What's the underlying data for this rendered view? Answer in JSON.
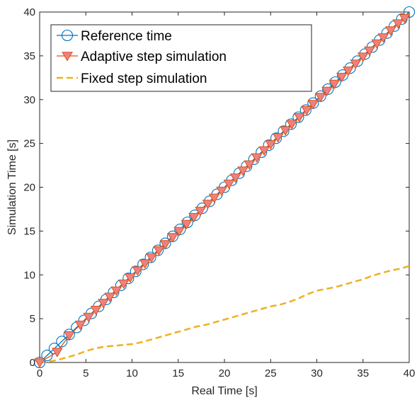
{
  "chart_data": {
    "type": "line",
    "xlabel": "Real Time [s]",
    "ylabel": "Simulation Time [s]",
    "xlim": [
      0,
      40
    ],
    "ylim": [
      0,
      40
    ],
    "xticks": [
      0,
      5,
      10,
      15,
      20,
      25,
      30,
      35,
      40
    ],
    "yticks": [
      0,
      5,
      10,
      15,
      20,
      25,
      30,
      35,
      40
    ],
    "grid": false,
    "legend_position": "top-left",
    "series": [
      {
        "name": "Reference time",
        "style": "line-with-circle-markers",
        "color": "#0072BD",
        "x": [
          0,
          0.8,
          1.6,
          2.4,
          3.2,
          4.0,
          4.8,
          5.6,
          6.4,
          7.2,
          8.0,
          8.8,
          9.6,
          10.4,
          11.2,
          12.0,
          12.8,
          13.6,
          14.4,
          15.2,
          16.0,
          16.8,
          17.6,
          18.4,
          19.2,
          20.0,
          20.8,
          21.6,
          22.4,
          23.2,
          24.0,
          24.8,
          25.6,
          26.4,
          27.2,
          28.0,
          28.8,
          29.6,
          30.4,
          31.2,
          32.0,
          32.8,
          33.6,
          34.4,
          35.2,
          36.0,
          36.8,
          37.6,
          38.4,
          39.2,
          40.0
        ],
        "y": [
          0,
          0.8,
          1.6,
          2.4,
          3.2,
          4.0,
          4.8,
          5.6,
          6.4,
          7.2,
          8.0,
          8.8,
          9.6,
          10.4,
          11.2,
          12.0,
          12.8,
          13.6,
          14.4,
          15.2,
          16.0,
          16.8,
          17.6,
          18.4,
          19.2,
          20.0,
          20.8,
          21.6,
          22.4,
          23.2,
          24.0,
          24.8,
          25.6,
          26.4,
          27.2,
          28.0,
          28.8,
          29.6,
          30.4,
          31.2,
          32.0,
          32.8,
          33.6,
          34.4,
          35.2,
          36.0,
          36.8,
          37.6,
          38.4,
          39.2,
          40.0
        ]
      },
      {
        "name": "Adaptive step simulation",
        "style": "line-with-down-triangle-markers",
        "color": "#D95319",
        "marker_fill": "#F08080",
        "x": [
          0,
          1.9,
          3.2,
          4.4,
          5.3,
          6.1,
          6.9,
          7.6,
          8.3,
          9.1,
          9.8,
          10.6,
          11.4,
          12.1,
          12.9,
          13.6,
          14.4,
          15.1,
          15.9,
          16.7,
          17.4,
          18.2,
          18.9,
          19.7,
          20.5,
          21.2,
          22.0,
          22.7,
          23.5,
          24.3,
          25.0,
          25.8,
          26.6,
          27.3,
          28.1,
          28.9,
          29.6,
          30.4,
          31.1,
          31.9,
          32.7,
          33.4,
          34.2,
          35.0,
          35.7,
          36.5,
          37.2,
          38.0,
          38.8,
          39.5
        ],
        "y": [
          0,
          1.2,
          3.1,
          4.3,
          5.2,
          6.0,
          6.8,
          7.5,
          8.2,
          9.0,
          9.7,
          10.5,
          11.3,
          12.0,
          12.8,
          13.5,
          14.3,
          15.0,
          15.8,
          16.6,
          17.3,
          18.1,
          18.8,
          19.6,
          20.4,
          21.1,
          21.9,
          22.6,
          23.4,
          24.2,
          24.9,
          25.7,
          26.5,
          27.2,
          28.0,
          28.8,
          29.5,
          30.3,
          31.0,
          31.8,
          32.6,
          33.3,
          34.1,
          34.9,
          35.6,
          36.4,
          37.1,
          37.9,
          38.7,
          39.3
        ]
      },
      {
        "name": "Fixed step simulation",
        "style": "dashed-line",
        "color": "#EDB120",
        "x": [
          0,
          1,
          2,
          3,
          4,
          5,
          6,
          7,
          8,
          9,
          10,
          11,
          12,
          13,
          14,
          15,
          16,
          17,
          18,
          19,
          20,
          21,
          22,
          23,
          24,
          25,
          26,
          27,
          28,
          29,
          30,
          31,
          32,
          33,
          34,
          35,
          36,
          37,
          38,
          39,
          40
        ],
        "y": [
          0,
          0.1,
          0.3,
          0.6,
          0.9,
          1.3,
          1.6,
          1.8,
          1.9,
          2.0,
          2.1,
          2.3,
          2.6,
          2.9,
          3.2,
          3.5,
          3.8,
          4.1,
          4.3,
          4.6,
          4.9,
          5.2,
          5.5,
          5.8,
          6.1,
          6.4,
          6.6,
          6.9,
          7.3,
          7.8,
          8.2,
          8.4,
          8.6,
          8.9,
          9.2,
          9.5,
          9.9,
          10.2,
          10.5,
          10.7,
          11.0
        ]
      }
    ]
  }
}
